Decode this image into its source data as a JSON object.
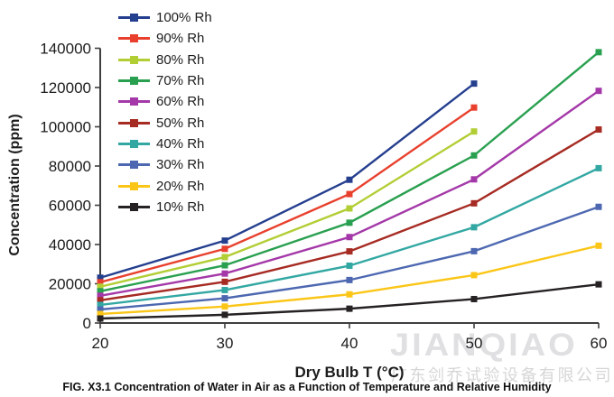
{
  "caption": "FIG. X3.1 Concentration of Water in Air as a Function of Temperature and Relative Humidity",
  "watermark": {
    "brand": "JIANQIAO",
    "company": "广东剑乔试验设备有限公司"
  },
  "theme": {
    "background": "#ffffff",
    "axis_color": "#3f3f3f",
    "text_color": "#1c1c1c",
    "watermark_brand_color": "#e0e0e3",
    "watermark_company_color": "#d6d6d6"
  },
  "chart_data": {
    "type": "line",
    "title": "",
    "xlabel": "Dry Bulb T (°C)",
    "ylabel": "Concentration (ppm)",
    "x": [
      20,
      30,
      40,
      50,
      60
    ],
    "xlim": [
      20,
      60
    ],
    "ylim": [
      0,
      140000
    ],
    "ytick_step": 20000,
    "grid": false,
    "marker": "square",
    "legend_position": "upper-left-inside",
    "series": [
      {
        "name": "100% Rh",
        "color": "#253f8f",
        "values": [
          23100,
          42000,
          73000,
          122000,
          null
        ]
      },
      {
        "name": "90% Rh",
        "color": "#e8402d",
        "values": [
          20800,
          37800,
          65700,
          109800,
          null
        ]
      },
      {
        "name": "80% Rh",
        "color": "#b2ce35",
        "values": [
          18500,
          33600,
          58400,
          97600,
          null
        ]
      },
      {
        "name": "70% Rh",
        "color": "#29a04f",
        "values": [
          16200,
          29400,
          51100,
          85400,
          138000
        ]
      },
      {
        "name": "60% Rh",
        "color": "#a438a8",
        "values": [
          13900,
          25200,
          43800,
          73200,
          118300
        ]
      },
      {
        "name": "50% Rh",
        "color": "#a62b23",
        "values": [
          11600,
          21000,
          36500,
          61000,
          98600
        ]
      },
      {
        "name": "40% Rh",
        "color": "#33a8a3",
        "values": [
          9200,
          16800,
          29200,
          48800,
          78900
        ]
      },
      {
        "name": "30% Rh",
        "color": "#4d68b1",
        "values": [
          6900,
          12600,
          21900,
          36600,
          59200
        ]
      },
      {
        "name": "20% Rh",
        "color": "#fbc618",
        "values": [
          4600,
          8400,
          14600,
          24400,
          39400
        ]
      },
      {
        "name": "10% Rh",
        "color": "#262223",
        "values": [
          2300,
          4200,
          7300,
          12200,
          19700
        ]
      }
    ]
  }
}
